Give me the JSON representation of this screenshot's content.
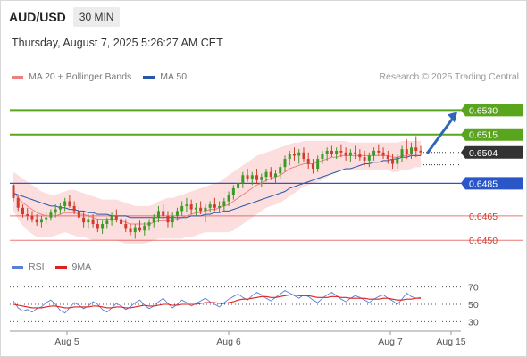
{
  "header": {
    "symbol": "AUD/USD",
    "timeframe": "30 MIN"
  },
  "datetime": "Thursday, August 7, 2025 5:26:27 AM CET",
  "legend": {
    "ma20_label": "MA 20 + Bollinger Bands",
    "ma20_color": "#f08080",
    "ma50_label": "MA 50",
    "ma50_color": "#2a56a8"
  },
  "credit": "Research © 2025 Trading Central",
  "rsi_legend": {
    "rsi_label": "RSI",
    "rsi_color": "#5b7fd6",
    "ma_label": "9MA",
    "ma_color": "#e02020"
  },
  "chart_data": {
    "type": "candlestick",
    "ylim": [
      0.6443,
      0.6545
    ],
    "x_ticks": [
      "Aug 5",
      "Aug 6",
      "Aug 7",
      "Aug 15"
    ],
    "current_price": {
      "label": "0.6504",
      "value": 0.6504,
      "color": "#333333"
    },
    "levels": [
      {
        "label": "0.6530",
        "value": 0.653,
        "kind": "resistance",
        "color": "#5aa51e"
      },
      {
        "label": "0.6515",
        "value": 0.6515,
        "kind": "resistance",
        "color": "#5aa51e"
      },
      {
        "label": "0.6485",
        "value": 0.6485,
        "kind": "pivot",
        "color": "#2a56c8"
      },
      {
        "label": "0.6465",
        "value": 0.6465,
        "kind": "support",
        "color": "#e04040"
      },
      {
        "label": "0.6450",
        "value": 0.645,
        "kind": "support",
        "color": "#e04040"
      }
    ],
    "candles": [
      [
        0.6484,
        0.6485,
        0.6474,
        0.6476
      ],
      [
        0.6476,
        0.6478,
        0.6468,
        0.647
      ],
      [
        0.647,
        0.6472,
        0.6464,
        0.6466
      ],
      [
        0.6466,
        0.647,
        0.6462,
        0.6465
      ],
      [
        0.6465,
        0.6468,
        0.6461,
        0.6463
      ],
      [
        0.6463,
        0.6466,
        0.6459,
        0.6461
      ],
      [
        0.6461,
        0.6465,
        0.6458,
        0.6463
      ],
      [
        0.6463,
        0.6467,
        0.646,
        0.6464
      ],
      [
        0.6464,
        0.6469,
        0.6462,
        0.6467
      ],
      [
        0.6467,
        0.6472,
        0.6464,
        0.6469
      ],
      [
        0.6469,
        0.6473,
        0.6466,
        0.6471
      ],
      [
        0.6471,
        0.6476,
        0.6468,
        0.6474
      ],
      [
        0.6474,
        0.6478,
        0.647,
        0.6471
      ],
      [
        0.6471,
        0.6474,
        0.6466,
        0.6468
      ],
      [
        0.6468,
        0.6471,
        0.6462,
        0.6464
      ],
      [
        0.6464,
        0.6467,
        0.6458,
        0.6461
      ],
      [
        0.6461,
        0.6466,
        0.6457,
        0.6463
      ],
      [
        0.6463,
        0.6466,
        0.6458,
        0.646
      ],
      [
        0.646,
        0.6463,
        0.6455,
        0.6457
      ],
      [
        0.6457,
        0.6462,
        0.6454,
        0.646
      ],
      [
        0.646,
        0.6464,
        0.6457,
        0.6462
      ],
      [
        0.6462,
        0.6467,
        0.6459,
        0.6465
      ],
      [
        0.6465,
        0.6469,
        0.6461,
        0.6463
      ],
      [
        0.6463,
        0.6466,
        0.6458,
        0.646
      ],
      [
        0.646,
        0.6463,
        0.6455,
        0.6457
      ],
      [
        0.6457,
        0.646,
        0.6453,
        0.6455
      ],
      [
        0.6455,
        0.646,
        0.6451,
        0.6458
      ],
      [
        0.6458,
        0.6462,
        0.6455,
        0.6456
      ],
      [
        0.6456,
        0.6461,
        0.6453,
        0.6459
      ],
      [
        0.6459,
        0.6463,
        0.6456,
        0.6461
      ],
      [
        0.6461,
        0.6466,
        0.6458,
        0.6464
      ],
      [
        0.6464,
        0.6471,
        0.6461,
        0.6468
      ],
      [
        0.6468,
        0.6472,
        0.6463,
        0.6465
      ],
      [
        0.6465,
        0.6468,
        0.6458,
        0.6461
      ],
      [
        0.6461,
        0.6467,
        0.6458,
        0.6465
      ],
      [
        0.6465,
        0.647,
        0.6462,
        0.6468
      ],
      [
        0.6468,
        0.6474,
        0.6465,
        0.6471
      ],
      [
        0.6471,
        0.6476,
        0.6467,
        0.6472
      ],
      [
        0.6472,
        0.6475,
        0.6466,
        0.6469
      ],
      [
        0.6469,
        0.6473,
        0.6465,
        0.647
      ],
      [
        0.647,
        0.6474,
        0.6466,
        0.6468
      ],
      [
        0.6468,
        0.6472,
        0.6461,
        0.647
      ],
      [
        0.647,
        0.6474,
        0.6467,
        0.6472
      ],
      [
        0.6472,
        0.6476,
        0.6468,
        0.647
      ],
      [
        0.647,
        0.6474,
        0.6467,
        0.6471
      ],
      [
        0.6471,
        0.6476,
        0.6468,
        0.6474
      ],
      [
        0.6474,
        0.648,
        0.6471,
        0.6478
      ],
      [
        0.6478,
        0.6484,
        0.6475,
        0.6482
      ],
      [
        0.6482,
        0.6488,
        0.6478,
        0.6485
      ],
      [
        0.6485,
        0.6492,
        0.6482,
        0.649
      ],
      [
        0.649,
        0.6494,
        0.6486,
        0.6488
      ],
      [
        0.6488,
        0.6492,
        0.6484,
        0.649
      ],
      [
        0.649,
        0.6494,
        0.6485,
        0.6487
      ],
      [
        0.6487,
        0.6491,
        0.6483,
        0.6489
      ],
      [
        0.6489,
        0.6494,
        0.6486,
        0.6492
      ],
      [
        0.6492,
        0.6495,
        0.6487,
        0.6489
      ],
      [
        0.6489,
        0.6493,
        0.6485,
        0.6491
      ],
      [
        0.6491,
        0.6497,
        0.6488,
        0.6495
      ],
      [
        0.6495,
        0.6502,
        0.6492,
        0.65
      ],
      [
        0.65,
        0.6505,
        0.6496,
        0.6503
      ],
      [
        0.6503,
        0.6507,
        0.6499,
        0.6502
      ],
      [
        0.6502,
        0.6506,
        0.6497,
        0.6504
      ],
      [
        0.6504,
        0.6507,
        0.6498,
        0.65
      ],
      [
        0.65,
        0.6504,
        0.6494,
        0.6497
      ],
      [
        0.6497,
        0.65,
        0.6491,
        0.6494
      ],
      [
        0.6494,
        0.6502,
        0.6492,
        0.65
      ],
      [
        0.65,
        0.6505,
        0.6497,
        0.6503
      ],
      [
        0.6503,
        0.6507,
        0.6499,
        0.6505
      ],
      [
        0.6505,
        0.6508,
        0.6501,
        0.6503
      ],
      [
        0.6503,
        0.6507,
        0.65,
        0.6505
      ],
      [
        0.6505,
        0.6509,
        0.6501,
        0.6504
      ],
      [
        0.6504,
        0.6507,
        0.6499,
        0.6502
      ],
      [
        0.6502,
        0.6506,
        0.6498,
        0.6504
      ],
      [
        0.6504,
        0.6508,
        0.65,
        0.6503
      ],
      [
        0.6503,
        0.6506,
        0.6499,
        0.6501
      ],
      [
        0.6501,
        0.6505,
        0.6496,
        0.6499
      ],
      [
        0.6499,
        0.6504,
        0.6495,
        0.6502
      ],
      [
        0.6502,
        0.6507,
        0.6499,
        0.6505
      ],
      [
        0.6505,
        0.6509,
        0.6502,
        0.6504
      ],
      [
        0.6504,
        0.6507,
        0.65,
        0.6502
      ],
      [
        0.6502,
        0.6505,
        0.6497,
        0.65
      ],
      [
        0.65,
        0.6503,
        0.6494,
        0.6497
      ],
      [
        0.6497,
        0.6503,
        0.6494,
        0.6501
      ],
      [
        0.6501,
        0.6508,
        0.6498,
        0.6506
      ],
      [
        0.6506,
        0.6512,
        0.65,
        0.6503
      ],
      [
        0.6503,
        0.651,
        0.65,
        0.6507
      ],
      [
        0.6507,
        0.6514,
        0.6501,
        0.6505
      ],
      [
        0.6505,
        0.6508,
        0.6502,
        0.6504
      ]
    ],
    "ma20": [
      0.648,
      0.6476,
      0.6473,
      0.6471,
      0.6469,
      0.6467,
      0.6466,
      0.6465,
      0.6465,
      0.6465,
      0.6466,
      0.6467,
      0.6467,
      0.6467,
      0.6466,
      0.6466,
      0.6465,
      0.6464,
      0.6463,
      0.6463,
      0.6463,
      0.6463,
      0.6463,
      0.6462,
      0.6461,
      0.646,
      0.646,
      0.646,
      0.646,
      0.646,
      0.6461,
      0.6462,
      0.6462,
      0.6462,
      0.6462,
      0.6463,
      0.6464,
      0.6465,
      0.6466,
      0.6467,
      0.6467,
      0.6468,
      0.6469,
      0.6469,
      0.647,
      0.6471,
      0.6472,
      0.6474,
      0.6476,
      0.6478,
      0.648,
      0.6482,
      0.6484,
      0.6485,
      0.6487,
      0.6488,
      0.6489,
      0.649,
      0.6492,
      0.6494,
      0.6495,
      0.6496,
      0.6497,
      0.6497,
      0.6497,
      0.6498,
      0.6499,
      0.65,
      0.6501,
      0.6501,
      0.6502,
      0.6502,
      0.6502,
      0.6502,
      0.6502,
      0.6502,
      0.6502,
      0.6502,
      0.6502,
      0.6502,
      0.6502,
      0.6501,
      0.6501,
      0.6502,
      0.6502,
      0.6503,
      0.6503,
      0.6503
    ],
    "ma50": [
      0.6479,
      0.6478,
      0.6477,
      0.6476,
      0.6475,
      0.6474,
      0.6473,
      0.6472,
      0.6471,
      0.6471,
      0.647,
      0.647,
      0.6469,
      0.6469,
      0.6468,
      0.6468,
      0.6467,
      0.6467,
      0.6466,
      0.6466,
      0.6466,
      0.6465,
      0.6465,
      0.6465,
      0.6465,
      0.6464,
      0.6464,
      0.6464,
      0.6464,
      0.6464,
      0.6464,
      0.6464,
      0.6464,
      0.6464,
      0.6464,
      0.6464,
      0.6464,
      0.6464,
      0.6465,
      0.6465,
      0.6465,
      0.6466,
      0.6466,
      0.6467,
      0.6467,
      0.6468,
      0.6468,
      0.6469,
      0.647,
      0.6471,
      0.6472,
      0.6473,
      0.6474,
      0.6475,
      0.6476,
      0.6477,
      0.6478,
      0.6479,
      0.648,
      0.6482,
      0.6483,
      0.6484,
      0.6485,
      0.6486,
      0.6487,
      0.6488,
      0.6489,
      0.649,
      0.6491,
      0.6492,
      0.6493,
      0.6494,
      0.6494,
      0.6495,
      0.6496,
      0.6497,
      0.6497,
      0.6498,
      0.6498,
      0.6499,
      0.6499,
      0.65,
      0.65,
      0.6501,
      0.6501,
      0.6502,
      0.6502,
      0.6502
    ],
    "bb_upper": [
      0.6492,
      0.649,
      0.6488,
      0.6486,
      0.6484,
      0.6482,
      0.648,
      0.6479,
      0.6478,
      0.6478,
      0.6479,
      0.648,
      0.6481,
      0.6481,
      0.648,
      0.6479,
      0.6478,
      0.6477,
      0.6476,
      0.6475,
      0.6475,
      0.6475,
      0.6475,
      0.6474,
      0.6473,
      0.6472,
      0.6471,
      0.6471,
      0.6471,
      0.6471,
      0.6472,
      0.6474,
      0.6475,
      0.6476,
      0.6476,
      0.6477,
      0.6478,
      0.6479,
      0.648,
      0.6481,
      0.6482,
      0.6483,
      0.6484,
      0.6485,
      0.6486,
      0.6488,
      0.649,
      0.6492,
      0.6494,
      0.6496,
      0.6498,
      0.65,
      0.6502,
      0.6503,
      0.6504,
      0.6505,
      0.6506,
      0.6507,
      0.6508,
      0.6509,
      0.651,
      0.651,
      0.6511,
      0.6511,
      0.6511,
      0.6511,
      0.6511,
      0.6511,
      0.6511,
      0.6511,
      0.6511,
      0.6511,
      0.651,
      0.651,
      0.651,
      0.651,
      0.651,
      0.651,
      0.651,
      0.651,
      0.651,
      0.651,
      0.651,
      0.6511,
      0.6511,
      0.6511,
      0.6511,
      0.6511
    ],
    "bb_lower": [
      0.6468,
      0.6463,
      0.6459,
      0.6456,
      0.6454,
      0.6452,
      0.6452,
      0.6452,
      0.6452,
      0.6453,
      0.6454,
      0.6455,
      0.6454,
      0.6453,
      0.6452,
      0.6452,
      0.6451,
      0.645,
      0.645,
      0.645,
      0.645,
      0.645,
      0.645,
      0.6449,
      0.6448,
      0.6448,
      0.6448,
      0.6448,
      0.6448,
      0.6449,
      0.645,
      0.6451,
      0.6451,
      0.6451,
      0.6451,
      0.6451,
      0.6451,
      0.6452,
      0.6452,
      0.6453,
      0.6454,
      0.6455,
      0.6455,
      0.6455,
      0.6455,
      0.6455,
      0.6455,
      0.6456,
      0.6458,
      0.646,
      0.6462,
      0.6464,
      0.6466,
      0.6468,
      0.647,
      0.6471,
      0.6472,
      0.6473,
      0.6475,
      0.6477,
      0.6479,
      0.6481,
      0.6483,
      0.6484,
      0.6485,
      0.6486,
      0.6487,
      0.6489,
      0.6491,
      0.6492,
      0.6493,
      0.6493,
      0.6493,
      0.6493,
      0.6493,
      0.6493,
      0.6493,
      0.6493,
      0.6493,
      0.6493,
      0.6493,
      0.6492,
      0.6492,
      0.6493,
      0.6493,
      0.6494,
      0.6495,
      0.6495
    ],
    "rsi": {
      "ylim": [
        20,
        80
      ],
      "ticks": [
        "70",
        "50",
        "30"
      ],
      "tick_values": [
        70,
        50,
        30
      ],
      "rsi_values": [
        54,
        46,
        42,
        44,
        41,
        45,
        47,
        52,
        55,
        50,
        43,
        40,
        46,
        52,
        49,
        45,
        48,
        53,
        50,
        44,
        41,
        46,
        51,
        48,
        44,
        47,
        52,
        55,
        49,
        45,
        48,
        53,
        57,
        51,
        46,
        50,
        55,
        52,
        48,
        51,
        54,
        57,
        53,
        50,
        47,
        52,
        56,
        59,
        62,
        58,
        55,
        60,
        64,
        61,
        57,
        54,
        58,
        62,
        66,
        63,
        60,
        57,
        61,
        59,
        55,
        52,
        57,
        61,
        64,
        60,
        56,
        53,
        57,
        60,
        58,
        55,
        52,
        56,
        59,
        61,
        57,
        54,
        50,
        56,
        63,
        59,
        57,
        58
      ],
      "ma_values": [
        50,
        49,
        48,
        47,
        46,
        46,
        46,
        47,
        48,
        48,
        47,
        46,
        46,
        47,
        47,
        47,
        47,
        48,
        48,
        47,
        46,
        46,
        47,
        47,
        46,
        46,
        47,
        48,
        49,
        48,
        48,
        49,
        50,
        50,
        49,
        49,
        50,
        50,
        50,
        50,
        51,
        52,
        52,
        52,
        51,
        51,
        52,
        53,
        55,
        56,
        56,
        57,
        58,
        59,
        59,
        58,
        58,
        59,
        60,
        61,
        61,
        60,
        60,
        60,
        59,
        58,
        58,
        58,
        59,
        59,
        58,
        58,
        57,
        57,
        57,
        57,
        56,
        56,
        56,
        57,
        57,
        56,
        55,
        55,
        56,
        56,
        57,
        57
      ]
    }
  }
}
